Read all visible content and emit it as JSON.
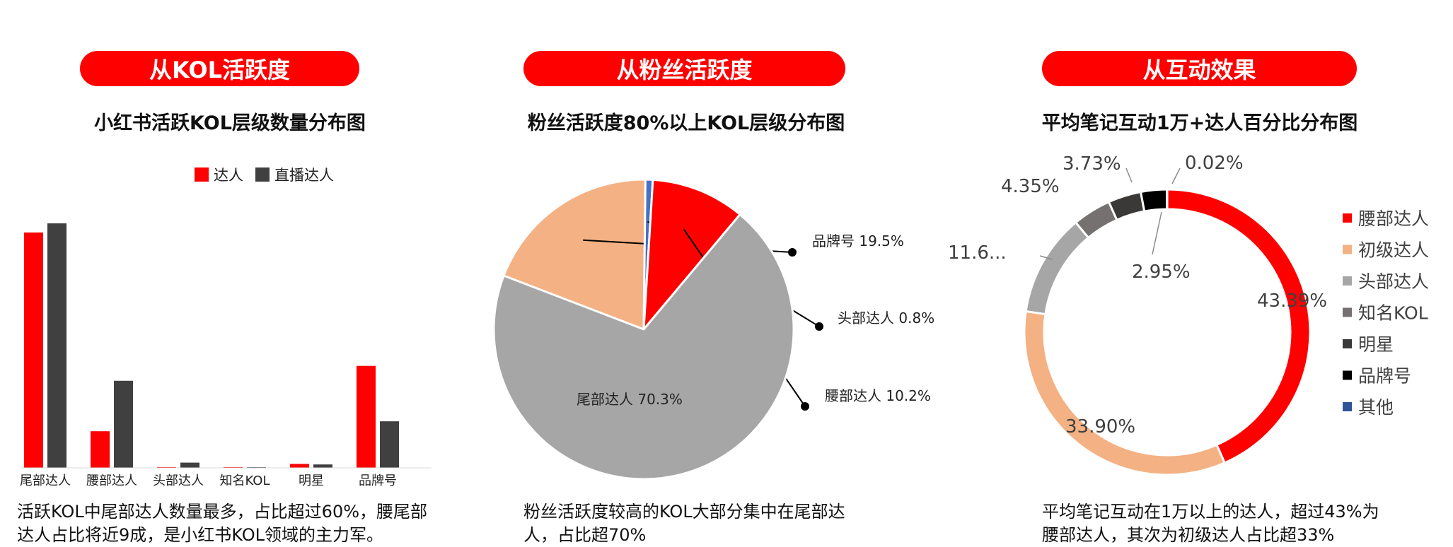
{
  "panels": [
    {
      "tag": "从KOL活跃度",
      "subtitle": "小红书活跃KOL层级数量分布图",
      "caption": "活跃KOL中尾部达人数量最多，占比超过60%，腰尾部达人占比将近9成，是小红书KOL领域的主力军。"
    },
    {
      "tag": "从粉丝活跃度",
      "subtitle": "粉丝活跃度80%以上KOL层级分布图",
      "caption": "粉丝活跃度较高的KOL大部分集中在尾部达人，占比超70%"
    },
    {
      "tag": "从互动效果",
      "subtitle": "平均笔记互动1万+达人百分比分布图",
      "caption": "平均笔记互动在1万以上的达人，超过43%为腰部达人，其次为初级达人占比超33%"
    }
  ],
  "colors": {
    "red": "#ff0000",
    "dark": "#404040",
    "peach": "#f4b183",
    "grey": "#a6a6a6",
    "mid_grey": "#767171",
    "charcoal": "#3b3838",
    "black": "#000000",
    "navy": "#2f5597",
    "blue_sliver": "#4472c4"
  },
  "chart_data": [
    {
      "type": "bar",
      "categories": [
        "尾部达人",
        "腰部达人",
        "头部达人",
        "知名KOL",
        "明星",
        "品牌号"
      ],
      "series": [
        {
          "name": "达人",
          "values": [
            900,
            140,
            3,
            3,
            15,
            390
          ],
          "color": "#ff0000"
        },
        {
          "name": "直播达人",
          "values": [
            935,
            333,
            20,
            2,
            13,
            178
          ],
          "color": "#404040"
        }
      ],
      "ylim": [
        0,
        1000
      ],
      "legend": "top-right",
      "grid": false
    },
    {
      "type": "pie",
      "slices": [
        {
          "label": "品牌号",
          "value": 19.5,
          "value_label": "19.5%",
          "color": "#f4b183"
        },
        {
          "label": "头部达人",
          "value": 0.8,
          "value_label": "0.8%",
          "color": "#4472c4"
        },
        {
          "label": "腰部达人",
          "value": 10.2,
          "value_label": "10.2%",
          "color": "#ff0000"
        },
        {
          "label": "尾部达人",
          "value": 70.3,
          "value_label": "70.3%",
          "color": "#a6a6a6"
        }
      ]
    },
    {
      "type": "pie",
      "variant": "donut",
      "slices": [
        {
          "label": "腰部达人",
          "value": 43.39,
          "value_label": "43.39%",
          "color": "#ff0000"
        },
        {
          "label": "初级达人",
          "value": 33.9,
          "value_label": "33.90%",
          "color": "#f4b183"
        },
        {
          "label": "头部达人",
          "value": 11.6,
          "value_label": "11.6...",
          "color": "#a6a6a6"
        },
        {
          "label": "知名KOL",
          "value": 4.35,
          "value_label": "4.35%",
          "color": "#767171"
        },
        {
          "label": "明星",
          "value": 3.73,
          "value_label": "3.73%",
          "color": "#3b3838"
        },
        {
          "label": "品牌号",
          "value": 2.95,
          "value_label": "2.95%",
          "color": "#000000"
        },
        {
          "label": "其他",
          "value": 0.02,
          "value_label": "0.02%",
          "color": "#2f5597"
        }
      ],
      "legend": "right"
    }
  ]
}
